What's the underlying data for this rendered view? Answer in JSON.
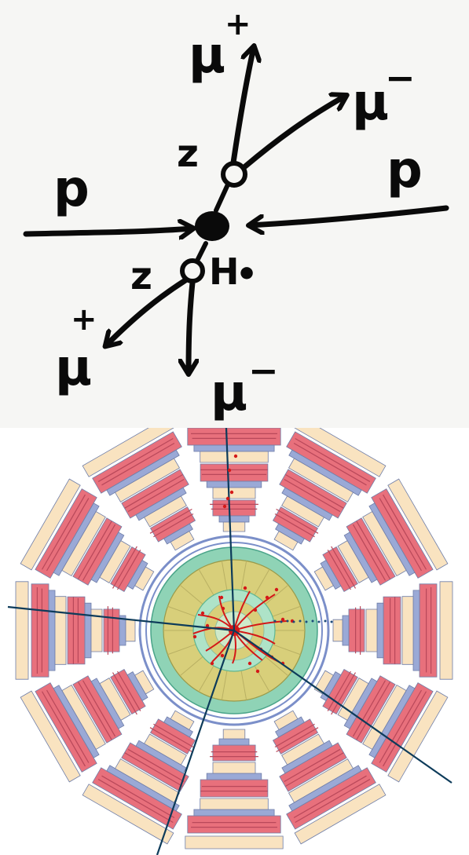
{
  "sketch": {
    "labels": {
      "proton_left": "p",
      "proton_right": "p",
      "z_upper": "z",
      "z_lower": "z",
      "higgs": "H",
      "higgs_superscript": "•",
      "muon_up": "μ",
      "muon_up_sign": "+",
      "muon_upright": "μ",
      "muon_upright_sign": "−",
      "muon_lowleft": "μ",
      "muon_lowleft_sign": "+",
      "muon_down": "μ",
      "muon_down_sign": "−"
    },
    "colors": {
      "ink": "#0a0a0a",
      "paper": "#f6f6f4"
    }
  },
  "detector": {
    "sectors": 12,
    "colors": {
      "muon_chamber_red": "#e8707c",
      "muon_chamber_cream": "#f9e3c0",
      "support_blue": "#9aa9d6",
      "hcal_green": "#8fd3b6",
      "ecal_yellow": "#d8cf7a",
      "tracker_green": "#aee3c8",
      "track_red": "#d41818",
      "muon_track": "#0d3b5a"
    }
  }
}
